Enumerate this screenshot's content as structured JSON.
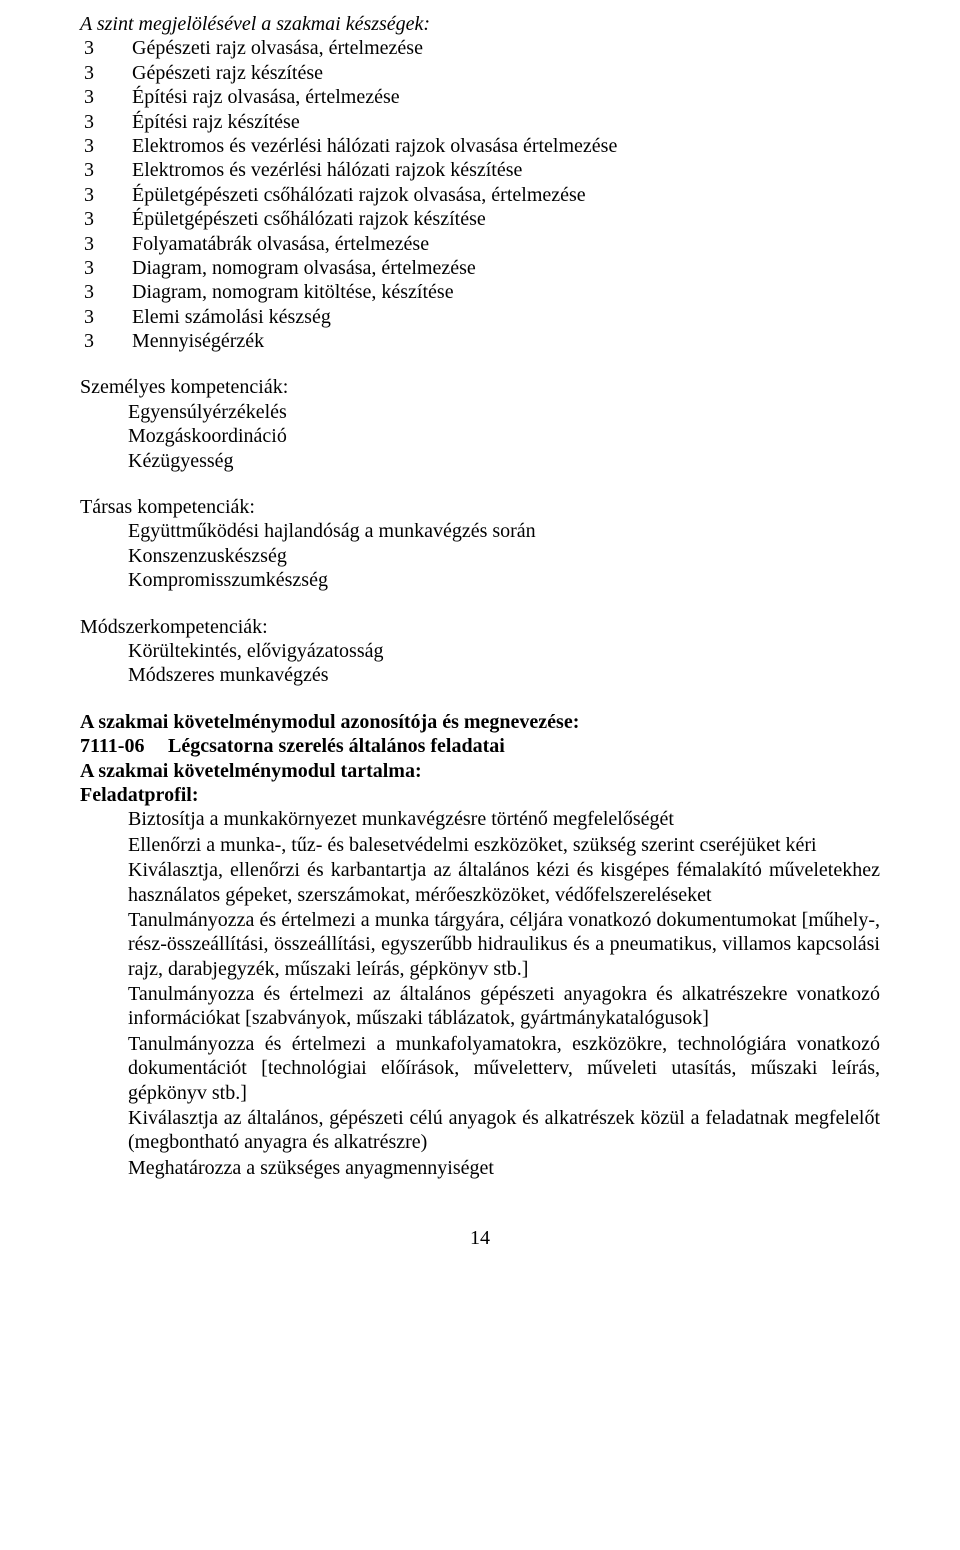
{
  "heading_skills": "A szint megjelölésével a szakmai készségek:",
  "skills": [
    {
      "n": "3",
      "t": "Gépészeti rajz olvasása, értelmezése"
    },
    {
      "n": "3",
      "t": "Gépészeti rajz készítése"
    },
    {
      "n": "3",
      "t": "Építési rajz olvasása, értelmezése"
    },
    {
      "n": "3",
      "t": "Építési rajz készítése"
    },
    {
      "n": "3",
      "t": "Elektromos és vezérlési hálózati rajzok olvasása értelmezése"
    },
    {
      "n": "3",
      "t": "Elektromos és vezérlési hálózati rajzok készítése"
    },
    {
      "n": "3",
      "t": "Épületgépészeti csőhálózati rajzok olvasása, értelmezése"
    },
    {
      "n": "3",
      "t": "Épületgépészeti csőhálózati rajzok készítése"
    },
    {
      "n": "3",
      "t": "Folyamatábrák olvasása, értelmezése"
    },
    {
      "n": "3",
      "t": "Diagram, nomogram olvasása, értelmezése"
    },
    {
      "n": "3",
      "t": "Diagram, nomogram kitöltése, készítése"
    },
    {
      "n": "3",
      "t": "Elemi számolási készség"
    },
    {
      "n": "3",
      "t": "Mennyiségérzék"
    }
  ],
  "personal": {
    "title": "Személyes kompetenciák:",
    "items": [
      "Egyensúlyérzékelés",
      "Mozgáskoordináció",
      "Kézügyesség"
    ]
  },
  "social": {
    "title": "Társas kompetenciák:",
    "items": [
      "Együttműködési hajlandóság a munkavégzés során",
      "Konszenzuskészség",
      "Kompromisszumkészség"
    ]
  },
  "method": {
    "title": "Módszerkompetenciák:",
    "items": [
      "Körültekintés, elővigyázatosság",
      "Módszeres munkavégzés"
    ]
  },
  "module": {
    "line1": "A szakmai követelménymodul azonosítója és megnevezése:",
    "code": "7111-06",
    "name": "Légcsatorna szerelés általános feladatai",
    "line2": "A szakmai követelménymodul tartalma:",
    "line3": "Feladatprofil:"
  },
  "tasks": [
    "Biztosítja a munkakörnyezet munkavégzésre történő megfelelőségét",
    "Ellenőrzi a munka-, tűz- és balesetvédelmi eszközöket, szükség szerint cseréjüket kéri",
    "Kiválasztja, ellenőrzi és karbantartja az általános kézi és kisgépes fémalakító műveletekhez használatos gépeket, szerszámokat, mérőeszközöket, védőfelszereléseket",
    "Tanulmányozza és értelmezi a munka tárgyára, céljára vonatkozó dokumentumokat [műhely-, rész-összeállítási, összeállítási, egyszerűbb hidraulikus és a pneumatikus, villamos kapcsolási rajz, darabjegyzék, műszaki leírás, gépkönyv stb.]",
    "Tanulmányozza és értelmezi az általános gépészeti anyagokra és alkatrészekre vonatkozó információkat [szabványok, műszaki táblázatok, gyártmánykatalógusok]",
    "Tanulmányozza és értelmezi a munkafolyamatokra, eszközökre, technológiára vonatkozó dokumentációt [technológiai előírások, műveletterv, műveleti utasítás, műszaki leírás, gépkönyv stb.]",
    "Kiválasztja az általános, gépészeti célú anyagok és alkatrészek közül a feladatnak megfelelőt (megbontható anyagra és alkatrészre)",
    "Meghatározza a szükséges anyagmennyiséget"
  ],
  "page_number": "14"
}
